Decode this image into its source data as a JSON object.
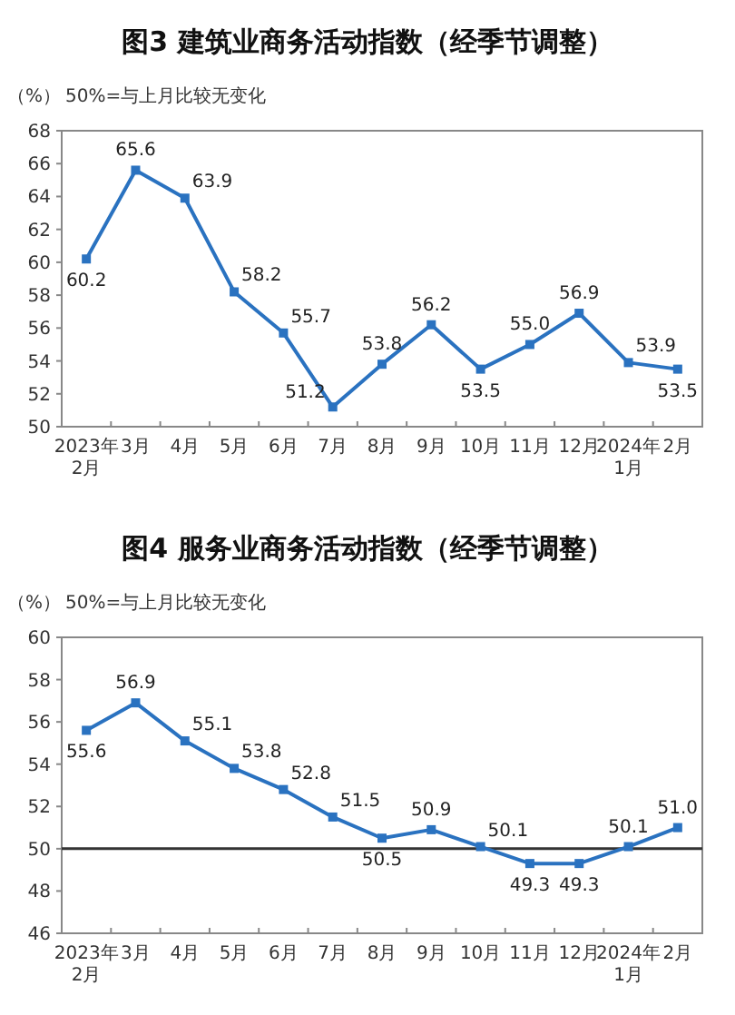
{
  "chart_data": [
    {
      "type": "line",
      "title": "图3  建筑业商务活动指数（经季节调整）",
      "subtitle": "50%=与上月比较无变化",
      "ylabel": "（%）",
      "categories": [
        "2023年\n2月",
        "3月",
        "4月",
        "5月",
        "6月",
        "7月",
        "8月",
        "9月",
        "10月",
        "11月",
        "12月",
        "2024年\n1月",
        "2月"
      ],
      "series": [
        {
          "color": "#2a72c0",
          "values": [
            60.2,
            65.6,
            63.9,
            58.2,
            55.7,
            51.2,
            53.8,
            56.2,
            53.5,
            55.0,
            56.9,
            53.9,
            53.5
          ],
          "value_labels": [
            "60.2",
            "65.6",
            "63.9",
            "58.2",
            "55.7",
            "51.2",
            "53.8",
            "56.2",
            "53.5",
            "55.0",
            "56.9",
            "53.9",
            "53.5"
          ]
        }
      ],
      "ylim": [
        50,
        68
      ],
      "yticks": [
        50,
        52,
        54,
        56,
        58,
        60,
        62,
        64,
        66,
        68
      ],
      "grid": false,
      "marker": "square"
    },
    {
      "type": "line",
      "title": "图4  服务业商务活动指数（经季节调整）",
      "subtitle": "50%=与上月比较无变化",
      "ylabel": "（%）",
      "categories": [
        "2023年\n2月",
        "3月",
        "4月",
        "5月",
        "6月",
        "7月",
        "8月",
        "9月",
        "10月",
        "11月",
        "12月",
        "2024年\n1月",
        "2月"
      ],
      "series": [
        {
          "color": "#2a72c0",
          "values": [
            55.6,
            56.9,
            55.1,
            53.8,
            52.8,
            51.5,
            50.5,
            50.9,
            50.1,
            49.3,
            49.3,
            50.1,
            51.0
          ],
          "value_labels": [
            "55.6",
            "56.9",
            "55.1",
            "53.8",
            "52.8",
            "51.5",
            "50.5",
            "50.9",
            "50.1",
            "49.3",
            "49.3",
            "50.1",
            "51.0"
          ]
        }
      ],
      "ylim": [
        46,
        60
      ],
      "yticks": [
        46,
        48,
        50,
        52,
        54,
        56,
        58,
        60
      ],
      "grid": false,
      "marker": "square",
      "ref_lines": [
        {
          "axis": "y",
          "value": 50,
          "color": "#333333"
        }
      ]
    }
  ]
}
